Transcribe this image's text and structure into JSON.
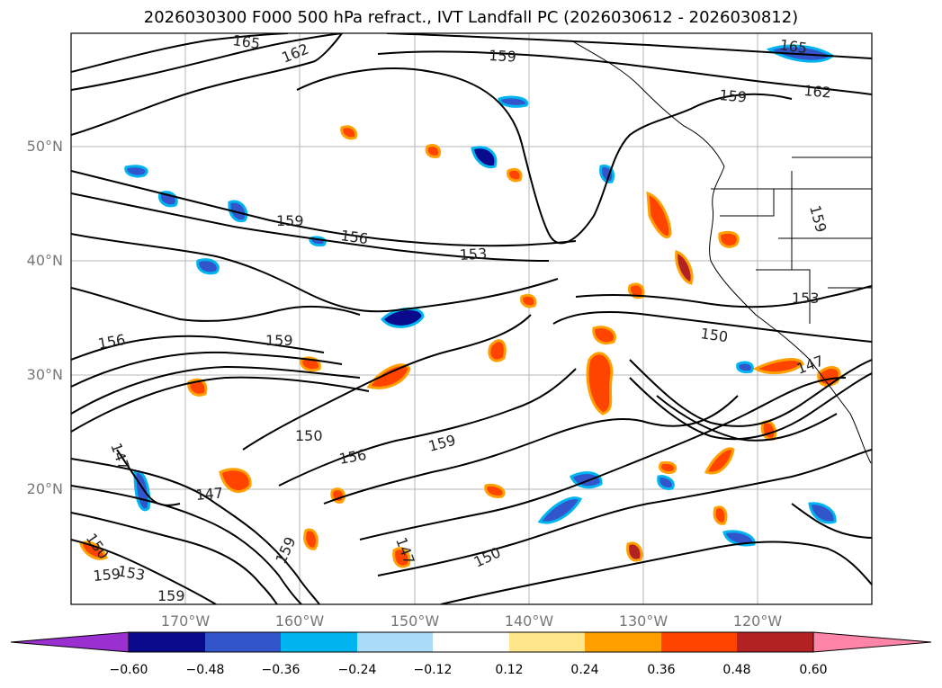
{
  "title": "2026030300 F000 500 hPa refract., IVT Landfall PC (2026030612 - 2026030812)",
  "lat_labels": [
    "50°N",
    "40°N",
    "30°N",
    "20°N"
  ],
  "lon_labels": [
    "170°W",
    "160°W",
    "150°W",
    "140°W",
    "130°W",
    "120°W"
  ],
  "contour_labels": [
    "165",
    "162",
    "159",
    "165",
    "162",
    "159",
    "159",
    "156",
    "153",
    "156",
    "159",
    "150",
    "147",
    "147",
    "156",
    "159",
    "159",
    "150",
    "147",
    "159",
    "153",
    "159",
    "150",
    "150",
    "147",
    "153",
    "159"
  ],
  "colorbar": {
    "ticks": [
      "−0.60",
      "−0.48",
      "−0.36",
      "−0.24",
      "−0.12",
      "0.12",
      "0.24",
      "0.36",
      "0.48",
      "0.60"
    ],
    "colors": [
      "#9b30d0",
      "#0a0a8c",
      "#3355cc",
      "#00b4f0",
      "#aadcf7",
      "#ffffff",
      "#ffe68a",
      "#ffa000",
      "#ff4400",
      "#b22222",
      "#ff85a8"
    ]
  },
  "colors": {
    "frame": "#000000",
    "grid": "#999999",
    "label_gray": "#777777"
  }
}
